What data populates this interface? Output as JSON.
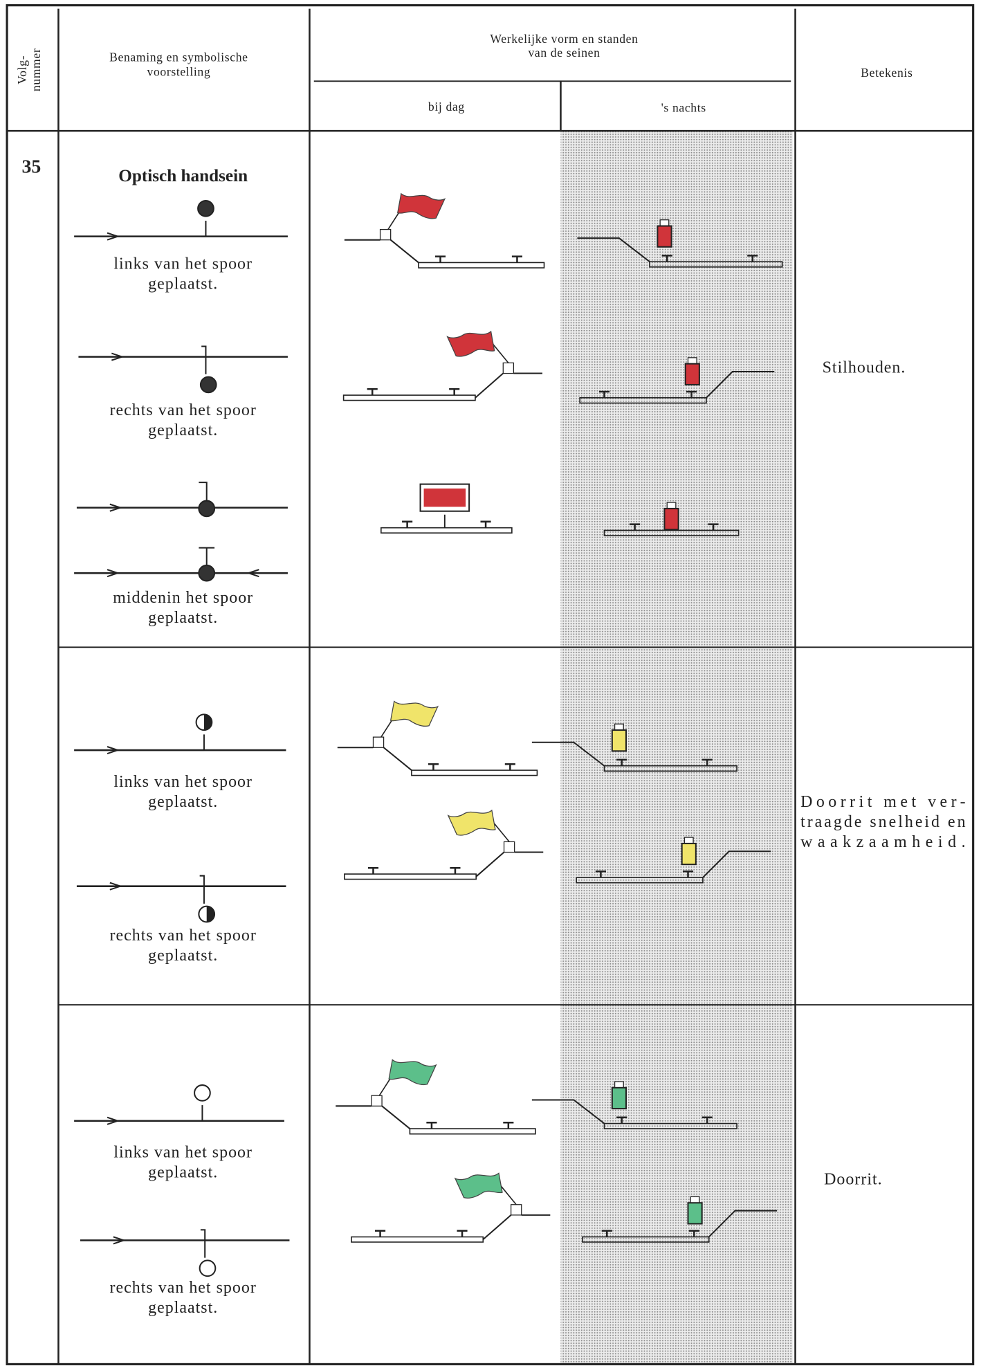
{
  "header": {
    "number_label": [
      "Volg-",
      "nummer"
    ],
    "name_label": [
      "Benaming en symbolische",
      "voorstelling"
    ],
    "form_label": [
      "Werkelijke vorm en standen",
      "van de seinen"
    ],
    "day_label": "bij dag",
    "night_label": "'s nachts",
    "meaning_label": "Betekenis"
  },
  "entry": {
    "number": "35",
    "title": "Optisch handsein",
    "groups": [
      {
        "captions": [
          [
            "links van het spoor",
            "geplaatst."
          ],
          [
            "rechts van het spoor",
            "geplaatst."
          ],
          [
            "middenin het spoor",
            "geplaatst."
          ]
        ],
        "meaning": [
          "Stilhouden."
        ]
      },
      {
        "captions": [
          [
            "links van het spoor",
            "geplaatst."
          ],
          [
            "rechts van het spoor",
            "geplaatst."
          ]
        ],
        "meaning": [
          "Doorrit met ver-",
          "traagde snelheid en",
          "waakzaamheid."
        ]
      },
      {
        "captions": [
          [
            "links van het spoor",
            "geplaatst."
          ],
          [
            "rechts van het spoor",
            "geplaatst."
          ]
        ],
        "meaning": [
          "Doorrit."
        ]
      }
    ]
  }
}
